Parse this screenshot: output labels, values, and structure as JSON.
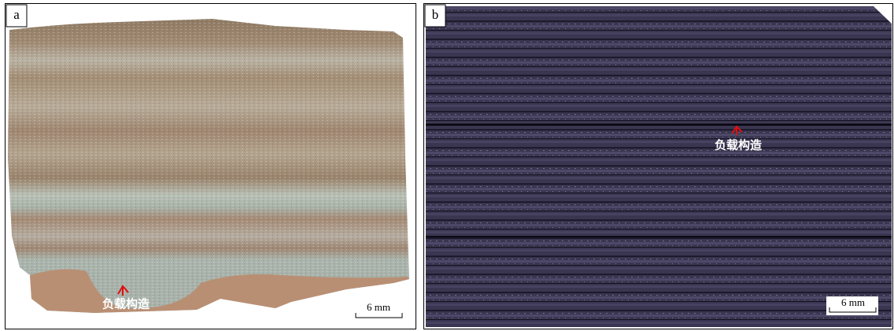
{
  "panels": [
    {
      "label": "a",
      "annotation": "负载构造",
      "scale": "6 mm"
    },
    {
      "label": "b",
      "annotation": "负载构造",
      "scale": "6 mm"
    }
  ]
}
